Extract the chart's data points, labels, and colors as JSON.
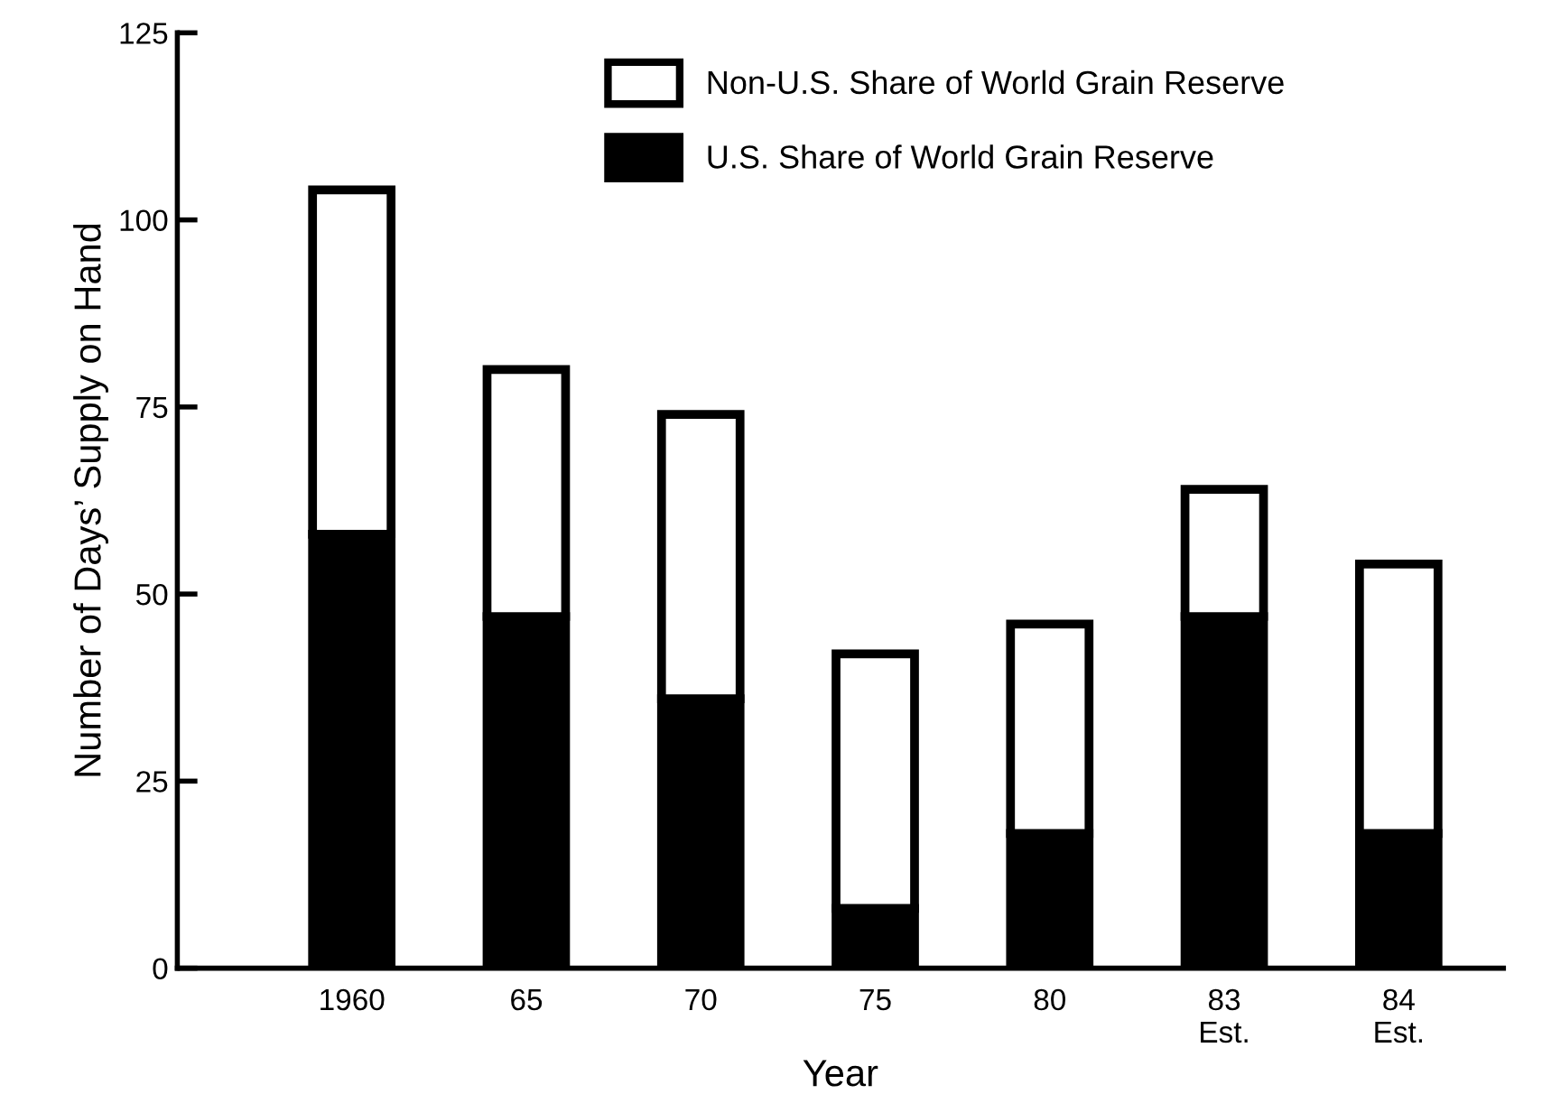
{
  "chart_data": {
    "type": "bar",
    "stacked": true,
    "xlabel": "Year",
    "ylabel": "Number of Days’ Supply on Hand",
    "categories": [
      "1960",
      "65",
      "70",
      "75",
      "80",
      "83\nEst.",
      "84\nEst."
    ],
    "series": [
      {
        "name": "U.S. Share of World Grain Reserve",
        "color": "#000000",
        "values": [
          58,
          47,
          36,
          8,
          18,
          47,
          18
        ]
      },
      {
        "name": "Non-U.S. Share of World Grain Reserve",
        "color": "#ffffff",
        "values": [
          46,
          33,
          38,
          34,
          28,
          17,
          36
        ]
      }
    ],
    "ylim": [
      0,
      125
    ],
    "yticks": [
      0,
      25,
      50,
      75,
      100,
      125
    ],
    "grid": false,
    "legend": "top"
  }
}
